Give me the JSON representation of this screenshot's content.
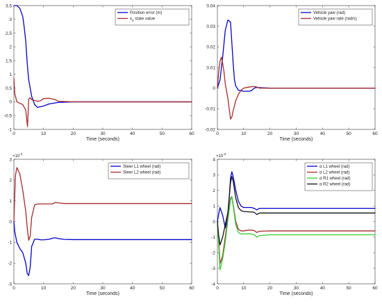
{
  "chart_data": [
    {
      "type": "line",
      "xlabel": "Time (seconds)",
      "xlim": [
        0,
        60
      ],
      "ylim": [
        -1,
        3.5
      ],
      "xticks": [
        0,
        10,
        20,
        30,
        40,
        50,
        60
      ],
      "yticks": [
        -1,
        -0.5,
        0,
        0.5,
        1,
        1.5,
        2,
        2.5,
        3,
        3.5
      ],
      "ytick_labels": [
        "-1",
        "-0.5",
        "0",
        "0.5",
        "1",
        "1.5",
        "2",
        "2.5",
        "3",
        "3.5"
      ],
      "exponent_label": "",
      "grid": false,
      "legend_position": "top-right",
      "series": [
        {
          "name": "Position error (m)",
          "color": "#0000cc",
          "x": [
            0,
            1,
            2,
            3,
            3.5,
            4,
            4.5,
            5,
            6,
            7,
            8,
            10,
            12,
            15,
            20,
            30,
            60
          ],
          "y": [
            3.5,
            3.5,
            3.4,
            3.1,
            2.7,
            2.2,
            1.4,
            0.8,
            0.2,
            -0.1,
            -0.2,
            -0.15,
            -0.07,
            -0.02,
            0,
            0,
            0
          ]
        },
        {
          "name": "x_a state value",
          "label_main": "x",
          "label_sub": "a",
          "label_rest": " state value",
          "color": "#a52a2a",
          "x": [
            0,
            0.3,
            1,
            2,
            3,
            4,
            4.6,
            5,
            5.5,
            6,
            7,
            8,
            9,
            10,
            12,
            14,
            15,
            20,
            60
          ],
          "y": [
            0.85,
            0.3,
            0,
            -0.05,
            -0.1,
            -0.3,
            -0.9,
            0.1,
            0.15,
            0.08,
            0.05,
            0.02,
            0.04,
            0.12,
            0.13,
            0.08,
            0.02,
            0,
            0
          ]
        }
      ]
    },
    {
      "type": "line",
      "xlabel": "Time (seconds)",
      "xlim": [
        0,
        60
      ],
      "ylim": [
        -0.02,
        0.04
      ],
      "xticks": [
        0,
        10,
        20,
        30,
        40,
        50,
        60
      ],
      "yticks": [
        -0.02,
        -0.01,
        0,
        0.01,
        0.02,
        0.03,
        0.04
      ],
      "ytick_labels": [
        "-0.02",
        "-0.01",
        "0",
        "0.01",
        "0.02",
        "0.03",
        "0.04"
      ],
      "exponent_label": "",
      "grid": false,
      "legend_position": "top-right",
      "series": [
        {
          "name": "Vehicle yaw (rad)",
          "color": "#0000cc",
          "x": [
            0,
            1,
            2,
            3,
            4,
            5,
            6,
            6.5,
            7,
            8,
            10,
            12,
            13,
            14,
            15,
            20,
            60
          ],
          "y": [
            0,
            0.004,
            0.015,
            0.028,
            0.033,
            0.032,
            0.012,
            0.004,
            0.001,
            -0.001,
            -0.0015,
            -0.0015,
            -0.0012,
            0,
            0.0003,
            0,
            0
          ]
        },
        {
          "name": "Vehicle yaw rate (rad/s)",
          "color": "#a52a2a",
          "x": [
            0,
            0.5,
            1,
            1.5,
            2,
            2.5,
            3,
            4,
            4.5,
            5,
            5.5,
            6,
            7,
            8,
            9,
            10,
            12,
            14,
            15,
            16,
            20,
            60
          ],
          "y": [
            0,
            0.008,
            0.013,
            0.015,
            0.012,
            0.008,
            0.002,
            -0.005,
            -0.01,
            -0.015,
            -0.014,
            -0.011,
            -0.006,
            -0.003,
            -0.001,
            0,
            0.0005,
            0.0008,
            0.0005,
            0,
            0,
            0
          ]
        }
      ]
    },
    {
      "type": "line",
      "xlabel": "Time (seconds)",
      "xlim": [
        0,
        60
      ],
      "ylim": [
        -3,
        3
      ],
      "xticks": [
        0,
        10,
        20,
        30,
        40,
        50,
        60
      ],
      "yticks": [
        -3,
        -2,
        -1,
        0,
        1,
        2,
        3
      ],
      "ytick_labels": [
        "-3",
        "-2",
        "-1",
        "0",
        "1",
        "2",
        "3"
      ],
      "exponent_label": "×10",
      "exponent_power": "-3",
      "y_scale_factor": 0.001,
      "grid": false,
      "legend_position": "top-right",
      "series": [
        {
          "name": "Steer L1 wheel (rad)",
          "color": "#0000cc",
          "x": [
            0,
            0.3,
            1,
            2,
            3,
            4,
            4.5,
            5,
            5.5,
            6,
            7,
            8,
            9,
            10,
            12,
            13,
            14,
            15,
            17,
            20,
            30,
            60
          ],
          "y": [
            0,
            -0.5,
            -1.0,
            -1.3,
            -1.5,
            -2.0,
            -2.5,
            -2.6,
            -2.2,
            -1.2,
            -0.85,
            -0.85,
            -0.88,
            -0.88,
            -0.85,
            -0.8,
            -0.78,
            -0.82,
            -0.86,
            -0.87,
            -0.87,
            -0.87
          ],
          "y_x1e-3": true
        },
        {
          "name": "Steer L2 wheel (rad)",
          "color": "#a52a2a",
          "x": [
            0,
            0.5,
            1,
            2,
            3,
            4,
            4.5,
            5,
            5.5,
            6,
            7,
            8,
            9,
            10,
            12,
            13,
            14,
            15,
            17,
            20,
            30,
            60
          ],
          "y": [
            0,
            2.2,
            2.6,
            2.3,
            1.5,
            0.5,
            -0.3,
            -0.9,
            -0.7,
            0.2,
            0.8,
            0.85,
            0.85,
            0.85,
            0.85,
            0.85,
            0.92,
            0.9,
            0.87,
            0.87,
            0.87,
            0.87
          ],
          "y_x1e-3": true
        }
      ]
    },
    {
      "type": "line",
      "xlabel": "Time (seconds)",
      "xlim": [
        0,
        60
      ],
      "ylim": [
        -4,
        4
      ],
      "xticks": [
        0,
        10,
        20,
        30,
        40,
        50,
        60
      ],
      "yticks": [
        -4,
        -3,
        -2,
        -1,
        0,
        1,
        2,
        3,
        4
      ],
      "ytick_labels": [
        "-4",
        "-3",
        "-2",
        "-1",
        "0",
        "1",
        "2",
        "3",
        "4"
      ],
      "exponent_label": "×10",
      "exponent_power": "-3",
      "y_scale_factor": 0.001,
      "grid": false,
      "legend_position": "top-right",
      "series": [
        {
          "name": "α L1 wheel (rad)",
          "label_main": "α",
          "label_rest": " L1 wheel (rad)",
          "color": "#0000cc",
          "x": [
            0,
            0.5,
            1,
            2,
            3,
            4,
            5,
            5.5,
            6,
            7,
            8,
            9,
            10,
            12,
            13,
            14,
            15,
            16,
            20,
            30,
            60
          ],
          "y": [
            0,
            0.5,
            0.9,
            0.4,
            -0.4,
            0.3,
            2.8,
            3.2,
            2.9,
            2.0,
            1.3,
            1.0,
            0.9,
            0.9,
            0.9,
            0.85,
            0.75,
            0.85,
            0.85,
            0.85,
            0.85
          ]
        },
        {
          "name": "α L2 wheel (rad)",
          "label_main": "α",
          "label_rest": " L2 wheel (rad)",
          "color": "#a52a2a",
          "x": [
            0,
            0.5,
            1,
            2,
            3,
            4,
            5,
            5.5,
            6,
            7,
            8,
            9,
            10,
            12,
            13,
            14,
            15,
            16,
            20,
            30,
            60
          ],
          "y": [
            0,
            -1.2,
            -2.7,
            -2.2,
            -1.0,
            0.3,
            1.5,
            1.6,
            1.1,
            0,
            -0.5,
            -0.6,
            -0.6,
            -0.55,
            -0.55,
            -0.58,
            -0.7,
            -0.62,
            -0.6,
            -0.6,
            -0.6
          ]
        },
        {
          "name": "α R1 wheel (rad)",
          "label_main": "α",
          "label_rest": " R1 wheel (rad)",
          "color": "#33cc33",
          "x": [
            0,
            0.5,
            1,
            2,
            3,
            4,
            5,
            5.5,
            6,
            7,
            8,
            9,
            10,
            12,
            13,
            14,
            15,
            16,
            20,
            30,
            60
          ],
          "y": [
            0,
            -1.5,
            -3.1,
            -2.4,
            -1.3,
            0.1,
            1.4,
            1.6,
            1.0,
            -0.2,
            -0.7,
            -0.8,
            -0.8,
            -0.78,
            -0.8,
            -0.85,
            -1.0,
            -0.9,
            -0.85,
            -0.85,
            -0.85
          ]
        },
        {
          "name": "α R2 wheel (rad)",
          "label_main": "α",
          "label_rest": " R2 wheel (rad)",
          "color": "#111111",
          "x": [
            0,
            0.5,
            1,
            2,
            3,
            4,
            5,
            5.5,
            6,
            7,
            8,
            9,
            10,
            12,
            13,
            14,
            15,
            16,
            20,
            30,
            60
          ],
          "y": [
            0,
            -0.9,
            -1.5,
            -1.0,
            -0.2,
            0.6,
            2.5,
            2.9,
            2.6,
            1.5,
            0.9,
            0.7,
            0.65,
            0.62,
            0.62,
            0.6,
            0.45,
            0.55,
            0.55,
            0.55,
            0.55
          ]
        }
      ]
    }
  ]
}
